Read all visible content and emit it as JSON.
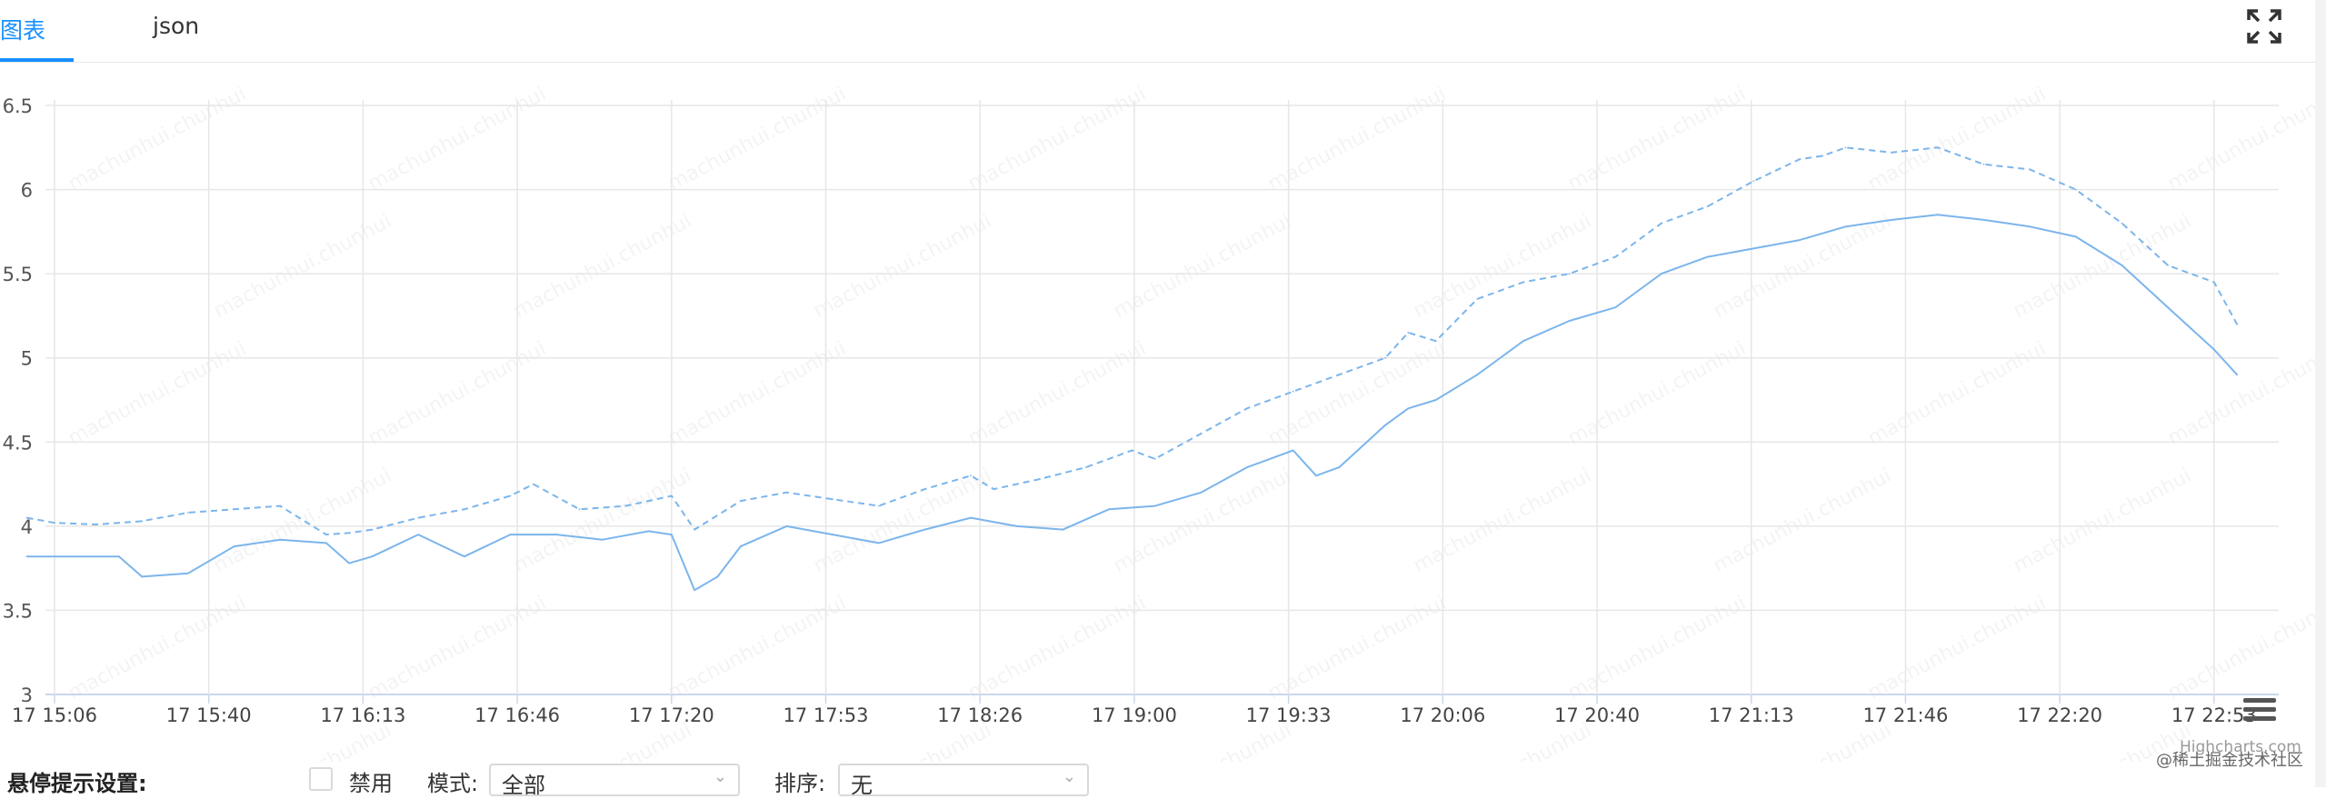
{
  "tabs": [
    {
      "label": "图表",
      "active": true
    },
    {
      "label": "json",
      "active": false
    }
  ],
  "icons": {
    "fullscreen": "fullscreen-icon",
    "menu": "hamburger-menu-icon",
    "dropdown": "chevron-down-icon"
  },
  "colors": {
    "accent": "#1890ff",
    "series": "#7cb5ec",
    "grid": "#e6e6e6"
  },
  "watermark_text": "machunhui.chunhui",
  "credits": "Highcharts.com",
  "community_mark": "@稀土掘金技术社区",
  "controls": {
    "title": "悬停提示设置:",
    "disable_label": "禁用",
    "disabled": false,
    "mode_label": "模式:",
    "mode_value": "全部",
    "sort_label": "排序:",
    "sort_value": "无"
  },
  "chart_data": {
    "type": "line",
    "title": "",
    "xlabel": "",
    "ylabel": "",
    "ylim": [
      3,
      6.5
    ],
    "yticks": [
      "3",
      "3.5",
      "4",
      "4.5",
      "5",
      "5.5",
      "6",
      "6.5"
    ],
    "xticks": [
      "17 15:06",
      "17 15:40",
      "17 16:13",
      "17 16:46",
      "17 17:20",
      "17 17:53",
      "17 18:26",
      "17 19:00",
      "17 19:33",
      "17 20:06",
      "17 20:40",
      "17 21:13",
      "17 21:46",
      "17 22:20",
      "17 22:53"
    ],
    "grid": true,
    "legend": "none",
    "series": [
      {
        "style": "dashed",
        "x": [
          "15:00",
          "15:06",
          "15:15",
          "15:25",
          "15:35",
          "15:45",
          "15:55",
          "16:05",
          "16:10",
          "16:15",
          "16:25",
          "16:35",
          "16:45",
          "16:50",
          "17:00",
          "17:10",
          "17:15",
          "17:20",
          "17:25",
          "17:35",
          "17:45",
          "17:55",
          "18:05",
          "18:15",
          "18:25",
          "18:30",
          "18:40",
          "18:50",
          "19:00",
          "19:05",
          "19:15",
          "19:25",
          "19:35",
          "19:45",
          "19:55",
          "20:00",
          "20:06",
          "20:15",
          "20:25",
          "20:35",
          "20:45",
          "20:55",
          "21:05",
          "21:15",
          "21:25",
          "21:30",
          "21:35",
          "21:45",
          "21:55",
          "22:05",
          "22:15",
          "22:25",
          "22:35",
          "22:45",
          "22:55",
          "23:00"
        ],
        "values": [
          4.05,
          4.02,
          4.01,
          4.03,
          4.08,
          4.1,
          4.12,
          3.95,
          3.96,
          3.98,
          4.05,
          4.1,
          4.18,
          4.25,
          4.1,
          4.12,
          4.15,
          4.18,
          3.98,
          4.15,
          4.2,
          4.16,
          4.12,
          4.22,
          4.3,
          4.22,
          4.28,
          4.35,
          4.45,
          4.4,
          4.55,
          4.7,
          4.8,
          4.9,
          5.0,
          5.15,
          5.1,
          5.35,
          5.45,
          5.5,
          5.6,
          5.8,
          5.9,
          6.05,
          6.18,
          6.2,
          6.25,
          6.22,
          6.25,
          6.15,
          6.12,
          6.0,
          5.8,
          5.55,
          5.45,
          5.2
        ]
      },
      {
        "style": "solid",
        "x": [
          "15:00",
          "15:06",
          "15:15",
          "15:20",
          "15:25",
          "15:35",
          "15:45",
          "15:55",
          "16:05",
          "16:10",
          "16:15",
          "16:25",
          "16:35",
          "16:45",
          "16:55",
          "17:05",
          "17:15",
          "17:20",
          "17:25",
          "17:30",
          "17:35",
          "17:45",
          "17:55",
          "18:05",
          "18:15",
          "18:25",
          "18:35",
          "18:45",
          "18:55",
          "19:05",
          "19:15",
          "19:25",
          "19:35",
          "19:40",
          "19:45",
          "19:55",
          "20:00",
          "20:06",
          "20:15",
          "20:25",
          "20:35",
          "20:45",
          "20:55",
          "21:05",
          "21:15",
          "21:25",
          "21:35",
          "21:45",
          "21:55",
          "22:05",
          "22:15",
          "22:25",
          "22:35",
          "22:45",
          "22:55",
          "23:00"
        ],
        "values": [
          3.82,
          3.82,
          3.82,
          3.82,
          3.7,
          3.72,
          3.88,
          3.92,
          3.9,
          3.78,
          3.82,
          3.95,
          3.82,
          3.95,
          3.95,
          3.92,
          3.97,
          3.95,
          3.62,
          3.7,
          3.88,
          4.0,
          3.95,
          3.9,
          3.98,
          4.05,
          4.0,
          3.98,
          4.1,
          4.12,
          4.2,
          4.35,
          4.45,
          4.3,
          4.35,
          4.6,
          4.7,
          4.75,
          4.9,
          5.1,
          5.22,
          5.3,
          5.5,
          5.6,
          5.65,
          5.7,
          5.78,
          5.82,
          5.85,
          5.82,
          5.78,
          5.72,
          5.55,
          5.3,
          5.05,
          4.9
        ]
      }
    ]
  }
}
